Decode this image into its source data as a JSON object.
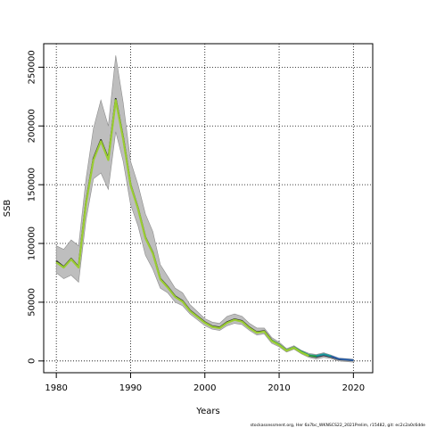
{
  "chart_data": {
    "type": "line",
    "title": "",
    "xlabel": "Years",
    "ylabel": "SSB",
    "xlim": [
      1978.3,
      2022.6
    ],
    "ylim": [
      -10000,
      270000
    ],
    "grid": true,
    "x_ticks": [
      1980,
      1990,
      2000,
      2010,
      2020
    ],
    "y_ticks": [
      0,
      50000,
      100000,
      150000,
      200000,
      250000
    ],
    "footer": "stockassessment.org, Her 6a7bc_WKNSCS22_2021Prelim, r15482, git: ec2c2a0c6dde",
    "colors": {
      "band": "#bebebe",
      "band_edge": "#8c8c8c",
      "series": [
        "#1f1f1f",
        "#2b5fa8",
        "#1a9a9a",
        "#2e9e44",
        "#9acd32"
      ],
      "grid": "#000000"
    },
    "band": {
      "x": [
        1980,
        1981,
        1982,
        1983,
        1984,
        1985,
        1986,
        1987,
        1988,
        1989,
        1990,
        1991,
        1992,
        1993,
        1994,
        1995,
        1996,
        1997,
        1998,
        1999,
        2000,
        2001,
        2002,
        2003,
        2004,
        2005,
        2006,
        2007,
        2008,
        2009,
        2010,
        2011,
        2012,
        2013,
        2014,
        2015,
        2016,
        2017,
        2018,
        2019,
        2020
      ],
      "upper": [
        98000,
        95000,
        103000,
        98000,
        155000,
        198000,
        222000,
        200000,
        260000,
        220000,
        170000,
        150000,
        125000,
        110000,
        82000,
        72000,
        62000,
        58000,
        48000,
        42000,
        36000,
        33000,
        32000,
        38000,
        40000,
        38000,
        32000,
        28000,
        28000,
        20000,
        16000,
        10500,
        13000,
        9000,
        6500,
        5500,
        7000,
        5000,
        2500,
        2000,
        1500
      ],
      "lower": [
        75000,
        70000,
        73000,
        67000,
        120000,
        155000,
        160000,
        146000,
        195000,
        170000,
        133000,
        115000,
        90000,
        78000,
        62000,
        58000,
        50000,
        47000,
        40000,
        35000,
        30000,
        27000,
        26000,
        30000,
        32000,
        31000,
        26000,
        22000,
        23000,
        15000,
        12000,
        7500,
        10000,
        6000,
        3000,
        1500,
        3000,
        2000,
        0,
        -500,
        -1000
      ]
    },
    "series": [
      {
        "name": "",
        "x": [
          1980,
          1981,
          1982,
          1983,
          1984,
          1985,
          1986,
          1987,
          1988,
          1989,
          1990,
          1991,
          1992,
          1993,
          1994,
          1995,
          1996,
          1997,
          1998,
          1999,
          2000,
          2001,
          2002,
          2003,
          2004,
          2005,
          2006,
          2007,
          2008,
          2009,
          2010,
          2011,
          2012,
          2013,
          2014,
          2015,
          2016,
          2017,
          2018,
          2019,
          2020
        ],
        "y": [
          85000,
          80000,
          87000,
          80000,
          135000,
          172000,
          188000,
          172000,
          223000,
          190000,
          150000,
          130000,
          105000,
          92000,
          70000,
          63000,
          55000,
          51000,
          43000,
          38000,
          33000,
          29500,
          28500,
          33000,
          35500,
          34000,
          28500,
          24500,
          25500,
          17500,
          14000,
          9000,
          11500,
          7500,
          4500,
          3500,
          5000,
          3500,
          1500,
          1000,
          500
        ]
      },
      {
        "name": "",
        "x": [
          2011,
          2012,
          2013,
          2014,
          2015,
          2016,
          2017,
          2018,
          2019,
          2020
        ],
        "y": [
          9000,
          11500,
          8000,
          5000,
          4200,
          5500,
          4000,
          1800,
          1200,
          600
        ]
      },
      {
        "name": "",
        "x": [
          2012,
          2013,
          2014,
          2015,
          2016,
          2017
        ],
        "y": [
          11500,
          8000,
          5000,
          4300,
          5800,
          4200
        ]
      },
      {
        "name": "",
        "x": [
          2009,
          2010,
          2011,
          2012,
          2013,
          2014,
          2015
        ],
        "y": [
          17500,
          14000,
          9000,
          11500,
          7800,
          4700,
          3800
        ]
      },
      {
        "name": "",
        "x": [
          1980,
          1981,
          1982,
          1983,
          1984,
          1985,
          1986,
          1987,
          1988,
          1989,
          1990,
          1991,
          1992,
          1993,
          1994,
          1995,
          1996,
          1997,
          1998,
          1999,
          2000,
          2001,
          2002,
          2003,
          2004,
          2005,
          2006,
          2007,
          2008,
          2009,
          2010,
          2011,
          2012,
          2013,
          2014
        ],
        "y": [
          84000,
          79500,
          86500,
          79500,
          134000,
          171000,
          187000,
          171000,
          222000,
          189000,
          149500,
          129500,
          104500,
          91500,
          69500,
          62500,
          54500,
          50500,
          42500,
          37500,
          32500,
          29000,
          28000,
          32500,
          35000,
          33500,
          28000,
          24000,
          25000,
          17000,
          13500,
          8800,
          11200,
          7200,
          4300
        ]
      }
    ]
  }
}
